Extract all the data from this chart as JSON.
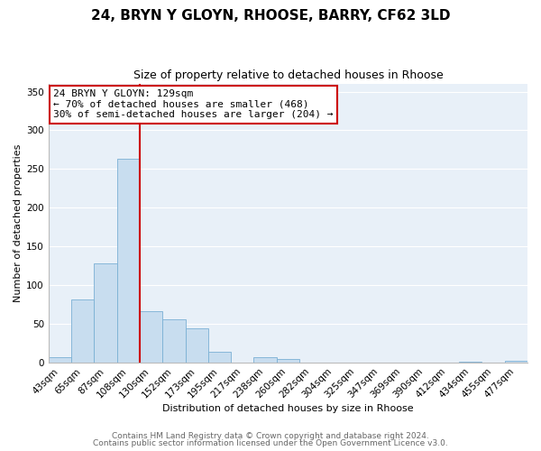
{
  "title_line1": "24, BRYN Y GLOYN, RHOOSE, BARRY, CF62 3LD",
  "title_line2": "Size of property relative to detached houses in Rhoose",
  "xlabel": "Distribution of detached houses by size in Rhoose",
  "ylabel": "Number of detached properties",
  "bin_labels": [
    "43sqm",
    "65sqm",
    "87sqm",
    "108sqm",
    "130sqm",
    "152sqm",
    "173sqm",
    "195sqm",
    "217sqm",
    "238sqm",
    "260sqm",
    "282sqm",
    "304sqm",
    "325sqm",
    "347sqm",
    "369sqm",
    "390sqm",
    "412sqm",
    "434sqm",
    "455sqm",
    "477sqm"
  ],
  "bar_heights": [
    6,
    81,
    128,
    263,
    66,
    55,
    44,
    14,
    0,
    6,
    4,
    0,
    0,
    0,
    0,
    0,
    0,
    0,
    1,
    0,
    2
  ],
  "bar_color": "#c8ddef",
  "bar_edge_color": "#7ab0d4",
  "vline_color": "#cc0000",
  "annotation_title": "24 BRYN Y GLOYN: 129sqm",
  "annotation_line2": "← 70% of detached houses are smaller (468)",
  "annotation_line3": "30% of semi-detached houses are larger (204) →",
  "annotation_box_color": "#ffffff",
  "annotation_border_color": "#cc0000",
  "ylim": [
    0,
    360
  ],
  "yticks": [
    0,
    50,
    100,
    150,
    200,
    250,
    300,
    350
  ],
  "footer_line1": "Contains HM Land Registry data © Crown copyright and database right 2024.",
  "footer_line2": "Contains public sector information licensed under the Open Government Licence v3.0.",
  "background_color": "#ffffff",
  "plot_background_color": "#e8f0f8",
  "grid_color": "#ffffff",
  "title1_fontsize": 11,
  "title2_fontsize": 9,
  "axis_label_fontsize": 8,
  "tick_fontsize": 7.5,
  "footer_fontsize": 6.5
}
